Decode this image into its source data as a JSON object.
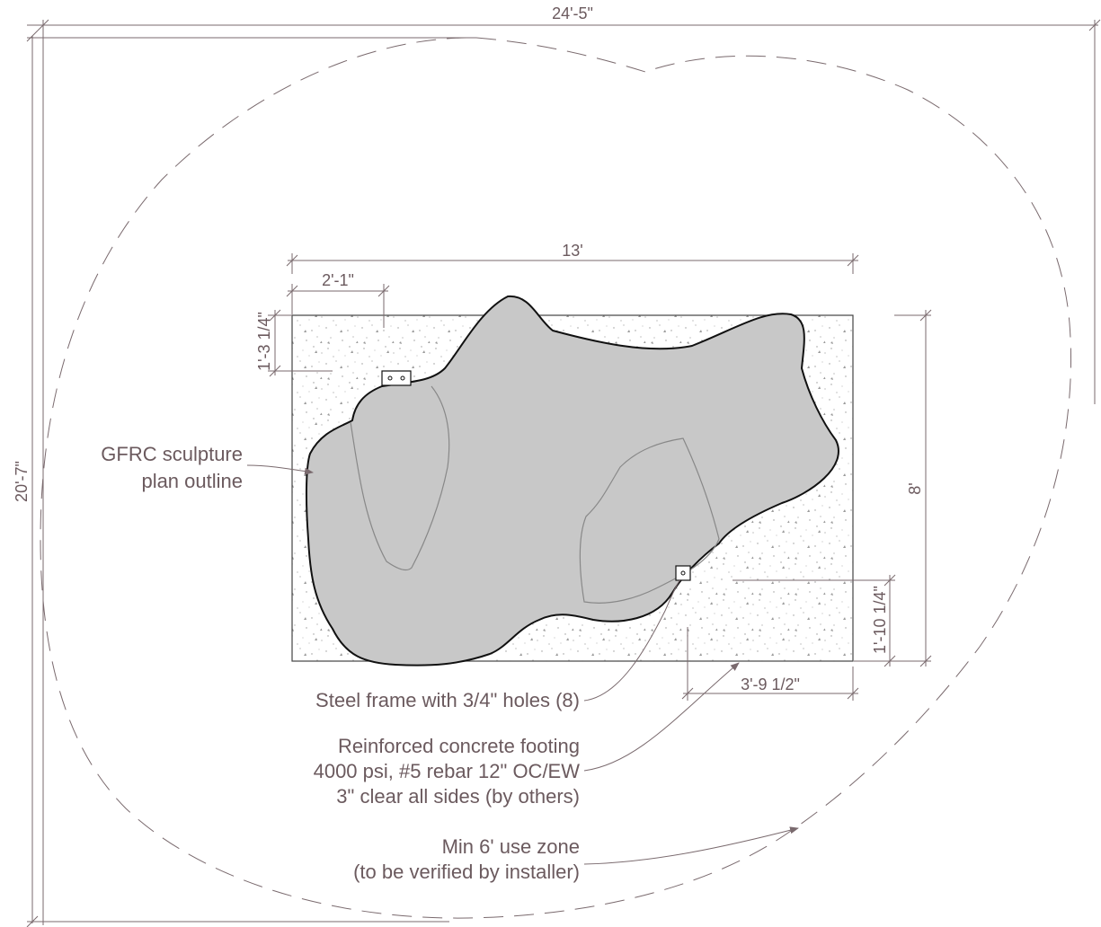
{
  "dimensions": {
    "overall_width": "24'-5\"",
    "overall_height": "20'-7\"",
    "footing_width": "13'",
    "footing_height": "8'",
    "frame_offset_x": "2'-1\"",
    "frame_offset_y": "1'-3 1/4\"",
    "frame2_offset_y": "1'-10 1/4\"",
    "frame2_offset_x": "3'-9 1/2\""
  },
  "notes": {
    "sculpture": [
      "GFRC sculpture",
      "plan outline"
    ],
    "steel_frame": [
      "Steel frame with 3/4\" holes (8)"
    ],
    "footing": [
      "Reinforced concrete footing",
      "4000 psi, #5 rebar 12\" OC/EW",
      "3\" clear all sides (by others)"
    ],
    "use_zone": [
      "Min 6' use zone",
      "(to be verified by installer)"
    ]
  },
  "colors": {
    "line": "#7a6a6e",
    "text": "#6b5a5e",
    "sculpture_fill": "#c8c8c8",
    "stipple": "#9a9a9a"
  }
}
